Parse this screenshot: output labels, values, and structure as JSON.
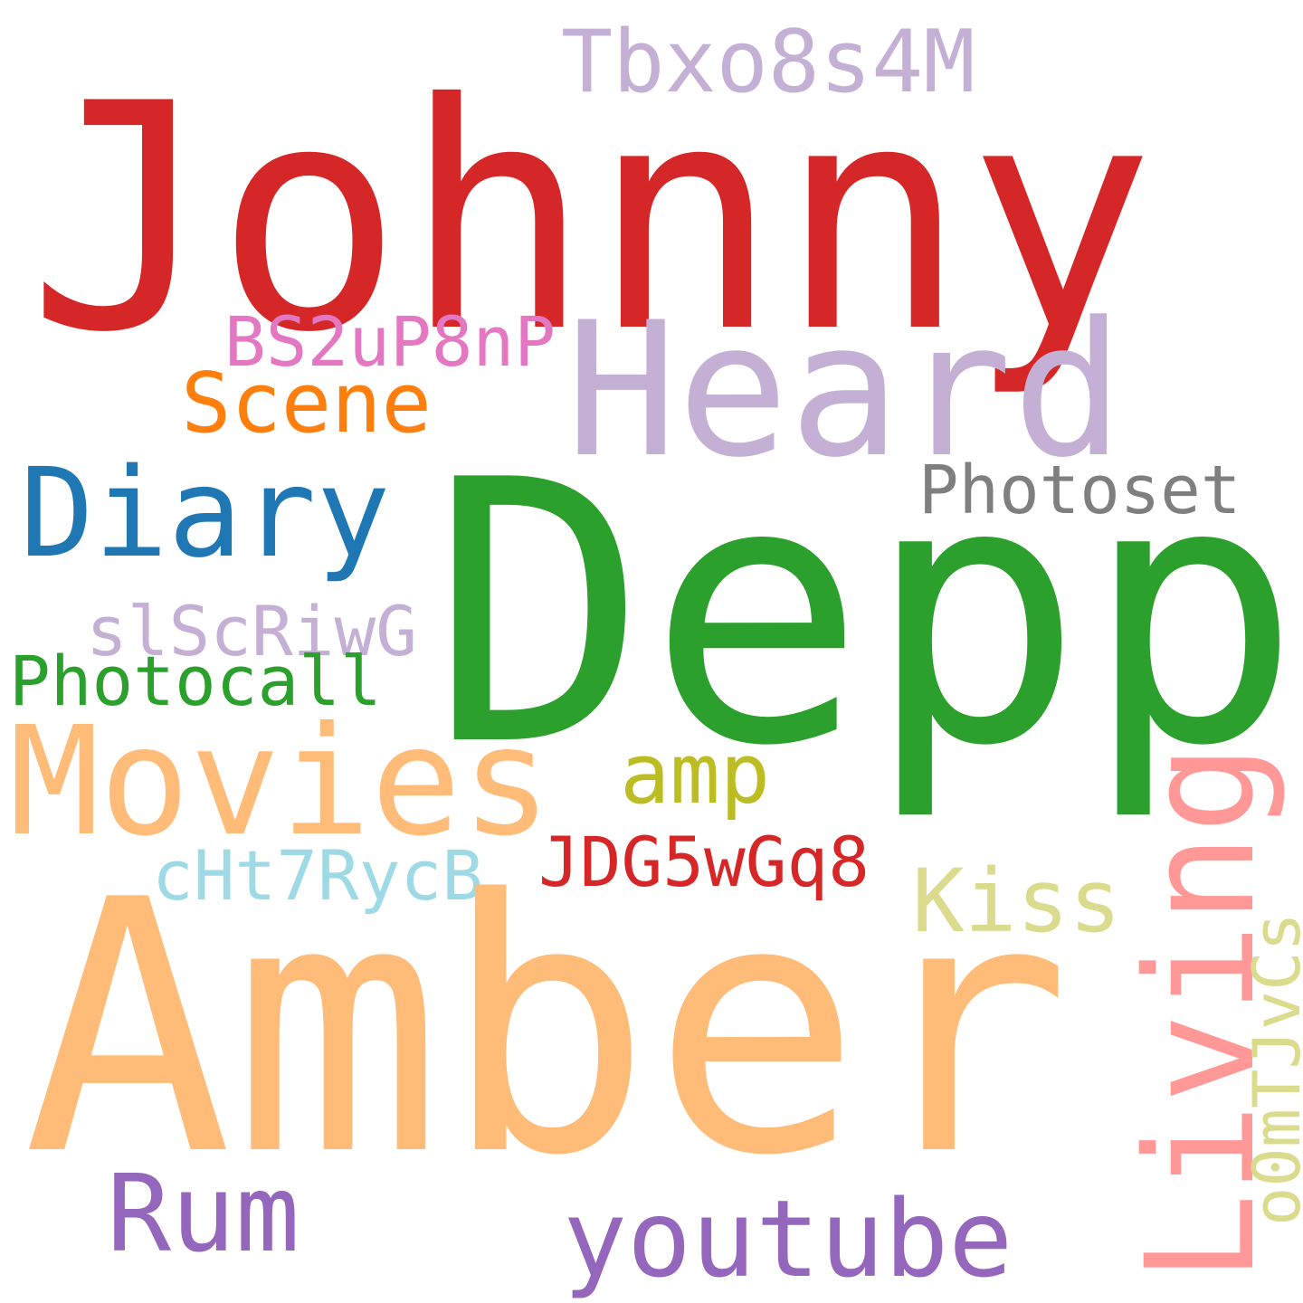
{
  "words": {
    "johnny": {
      "text": "Johnny",
      "color": "#d62728"
    },
    "heard": {
      "text": "Heard",
      "color": "#c5b0d5"
    },
    "depp": {
      "text": "Depp",
      "color": "#2ca02c"
    },
    "tbxo": {
      "text": "Tbxo8s4M",
      "color": "#c5b0d5"
    },
    "bs2": {
      "text": "BS2uP8nP",
      "color": "#e377c2"
    },
    "scene": {
      "text": "Scene",
      "color": "#ff7f0e"
    },
    "diary": {
      "text": "Diary",
      "color": "#1f77b4"
    },
    "photoset": {
      "text": "Photoset",
      "color": "#7f7f7f"
    },
    "slsc": {
      "text": "slScRiwG",
      "color": "#c5b0d5"
    },
    "photocall": {
      "text": "Photocall",
      "color": "#2ca02c"
    },
    "movies": {
      "text": "Movies",
      "color": "#ffbb78"
    },
    "amp": {
      "text": "amp",
      "color": "#bcbd22"
    },
    "jdg": {
      "text": "JDG5wGq8",
      "color": "#d62728"
    },
    "cht": {
      "text": "cHt7RycB",
      "color": "#9edae5"
    },
    "kiss": {
      "text": "Kiss",
      "color": "#dbdb8d"
    },
    "amber": {
      "text": "Amber",
      "color": "#ffbb78"
    },
    "rum": {
      "text": "Rum",
      "color": "#9467bd"
    },
    "youtube": {
      "text": "youtube",
      "color": "#9467bd"
    },
    "living": {
      "text": "Living",
      "color": "#ff9896"
    },
    "o0m": {
      "text": "o0mTJvCs",
      "color": "#dbdb8d"
    }
  }
}
